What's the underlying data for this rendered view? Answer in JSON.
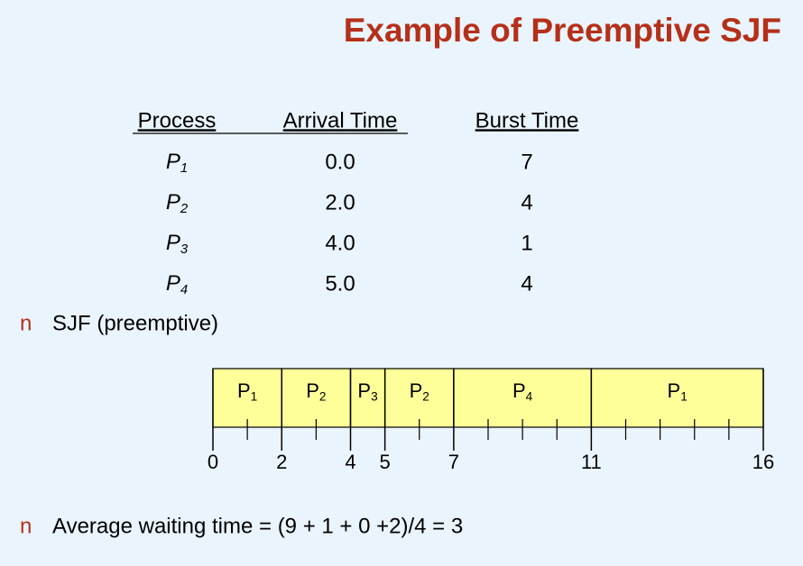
{
  "title": "Example of Preemptive SJF",
  "table": {
    "headers": [
      "Process",
      "Arrival Time",
      "Burst Time"
    ],
    "rows": [
      [
        {
          "base": "P",
          "sub": "1"
        },
        "0.0",
        "7"
      ],
      [
        {
          "base": "P",
          "sub": "2"
        },
        "2.0",
        "4"
      ],
      [
        {
          "base": "P",
          "sub": "3"
        },
        "4.0",
        "1"
      ],
      [
        {
          "base": "P",
          "sub": "4"
        },
        "5.0",
        "4"
      ]
    ]
  },
  "bullets": [
    {
      "marker": "n",
      "text": "SJF (preemptive)"
    },
    {
      "marker": "n",
      "text": "Average waiting time = (9 + 1 + 0 +2)/4 = 3"
    }
  ],
  "gantt": {
    "xlim": [
      0,
      16
    ],
    "color": "#ffff99",
    "segments": [
      {
        "base": "P",
        "sub": "1",
        "start": 0,
        "end": 2
      },
      {
        "base": "P",
        "sub": "2",
        "start": 2,
        "end": 4
      },
      {
        "base": "P",
        "sub": "3",
        "start": 4,
        "end": 5
      },
      {
        "base": "P",
        "sub": "2",
        "start": 5,
        "end": 7
      },
      {
        "base": "P",
        "sub": "4",
        "start": 7,
        "end": 11
      },
      {
        "base": "P",
        "sub": "1",
        "start": 11,
        "end": 16
      }
    ],
    "xticks": [
      0,
      2,
      4,
      5,
      7,
      11,
      16
    ]
  }
}
